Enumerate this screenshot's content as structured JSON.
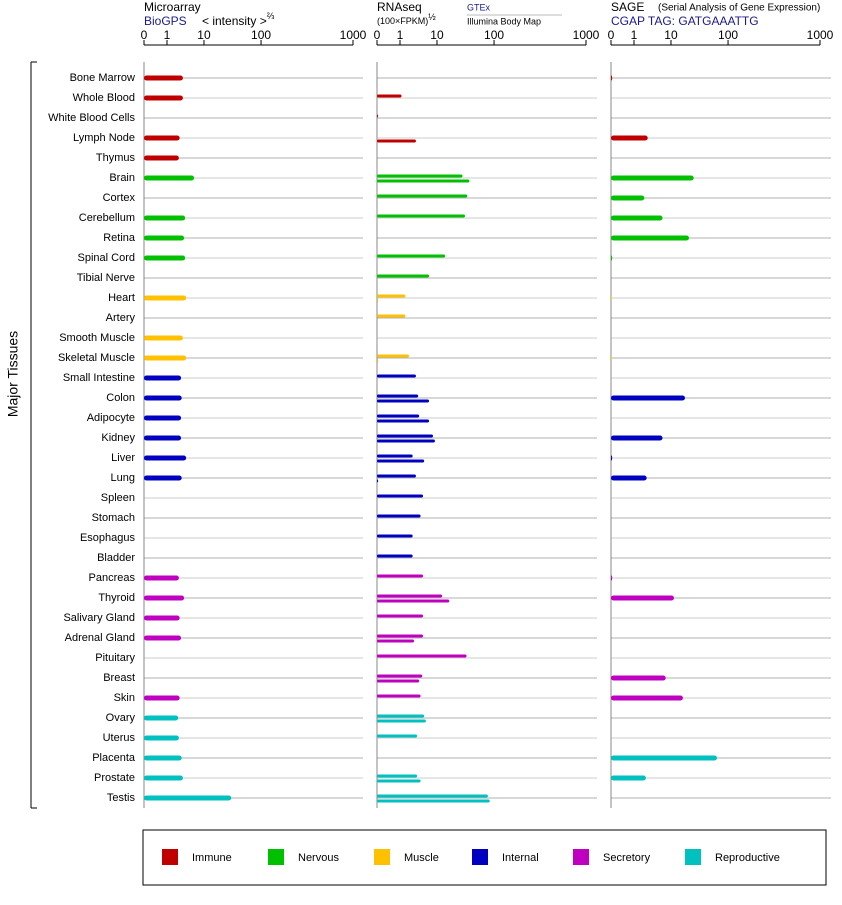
{
  "y_label": "Major Tissues",
  "groups": [
    {
      "name": "Immune",
      "color": "#c00000",
      "tissues": [
        "Bone Marrow",
        "Whole Blood",
        "White Blood Cells",
        "Lymph Node",
        "Thymus"
      ]
    },
    {
      "name": "Nervous",
      "color": "#00c000",
      "tissues": [
        "Brain",
        "Cortex",
        "Cerebellum",
        "Retina",
        "Spinal Cord",
        "Tibial Nerve"
      ]
    },
    {
      "name": "Muscle",
      "color": "#ffc000",
      "tissues": [
        "Heart",
        "Artery",
        "Smooth Muscle",
        "Skeletal Muscle"
      ]
    },
    {
      "name": "Internal",
      "color": "#0000c0",
      "tissues": [
        "Small Intestine",
        "Colon",
        "Adipocyte",
        "Kidney",
        "Liver",
        "Lung",
        "Spleen",
        "Stomach",
        "Esophagus",
        "Bladder"
      ]
    },
    {
      "name": "Secretory",
      "color": "#c000c0",
      "tissues": [
        "Pancreas",
        "Thyroid",
        "Salivary Gland",
        "Adrenal Gland",
        "Pituitary",
        "Breast",
        "Skin"
      ]
    },
    {
      "name": "Reproductive",
      "color": "#00c0c0",
      "tissues": [
        "Ovary",
        "Uterus",
        "Placenta",
        "Prostate",
        "Testis"
      ]
    }
  ],
  "chart_data": [
    {
      "type": "bar",
      "title": "Microarray",
      "unit_label": "< intensity >",
      "unit_exponent": "⅔",
      "xlim": [
        0,
        1000
      ],
      "xticks": [
        0,
        1,
        10,
        100,
        1000
      ],
      "series": [
        {
          "name": "BioGPS",
          "values": [
            2.7,
            2.7,
            null,
            2.2,
            2.1,
            5.4,
            null,
            3.1,
            2.9,
            3.1,
            null,
            3.3,
            null,
            2.7,
            3.3,
            2.4,
            2.5,
            2.4,
            2.4,
            3.3,
            2.5,
            null,
            null,
            null,
            null,
            2.1,
            2.9,
            2.2,
            2.4,
            null,
            null,
            2.2,
            2.0,
            2.1,
            2.5,
            2.7,
            30
          ]
        }
      ]
    },
    {
      "type": "bar",
      "title": "RNAseq",
      "unit_label": "(100×FPKM)",
      "unit_exponent": "½",
      "xlim": [
        0,
        1000
      ],
      "xticks": [
        0,
        1,
        10,
        100,
        1000
      ],
      "series": [
        {
          "name": "GTEx",
          "values": [
            null,
            1.1,
            0.05,
            null,
            null,
            28,
            34,
            31,
            null,
            13.9,
            6.1,
            1.4,
            1.4,
            null,
            1.75,
            2.7,
            3.1,
            3.3,
            7.8,
            2.2,
            2.7,
            4.2,
            3.6,
            2.2,
            2.2,
            4.2,
            12.3,
            4.2,
            4.2,
            33,
            4.0,
            3.6,
            4.5,
            2.9,
            null,
            2.9,
            78
          ]
        },
        {
          "name": "Illumina Body Map",
          "values": [
            null,
            null,
            null,
            2.7,
            null,
            37,
            null,
            null,
            null,
            null,
            null,
            0.05,
            null,
            null,
            0.05,
            null,
            6.1,
            6.1,
            8.8,
            4.5,
            0.05,
            null,
            null,
            null,
            null,
            null,
            16.4,
            null,
            2.4,
            null,
            3.3,
            null,
            5.0,
            null,
            null,
            3.6,
            84
          ]
        }
      ]
    },
    {
      "type": "bar",
      "title": "SAGE",
      "subtitle": "(Serial Analysis of Gene Expression)",
      "xlim": [
        0,
        1000
      ],
      "xticks": [
        0,
        1,
        10,
        100,
        1000
      ],
      "series": [
        {
          "name": "CGAP TAG: GATGAAATTG",
          "values": [
            0.05,
            null,
            null,
            2.35,
            null,
            25,
            1.9,
            5.9,
            20.7,
            0.05,
            null,
            0.03,
            null,
            null,
            0.03,
            null,
            17.6,
            null,
            5.9,
            0.05,
            2.2,
            null,
            null,
            null,
            null,
            0.05,
            11.3,
            null,
            null,
            null,
            7.2,
            16.2,
            null,
            null,
            64,
            2.1,
            null
          ]
        }
      ]
    }
  ]
}
